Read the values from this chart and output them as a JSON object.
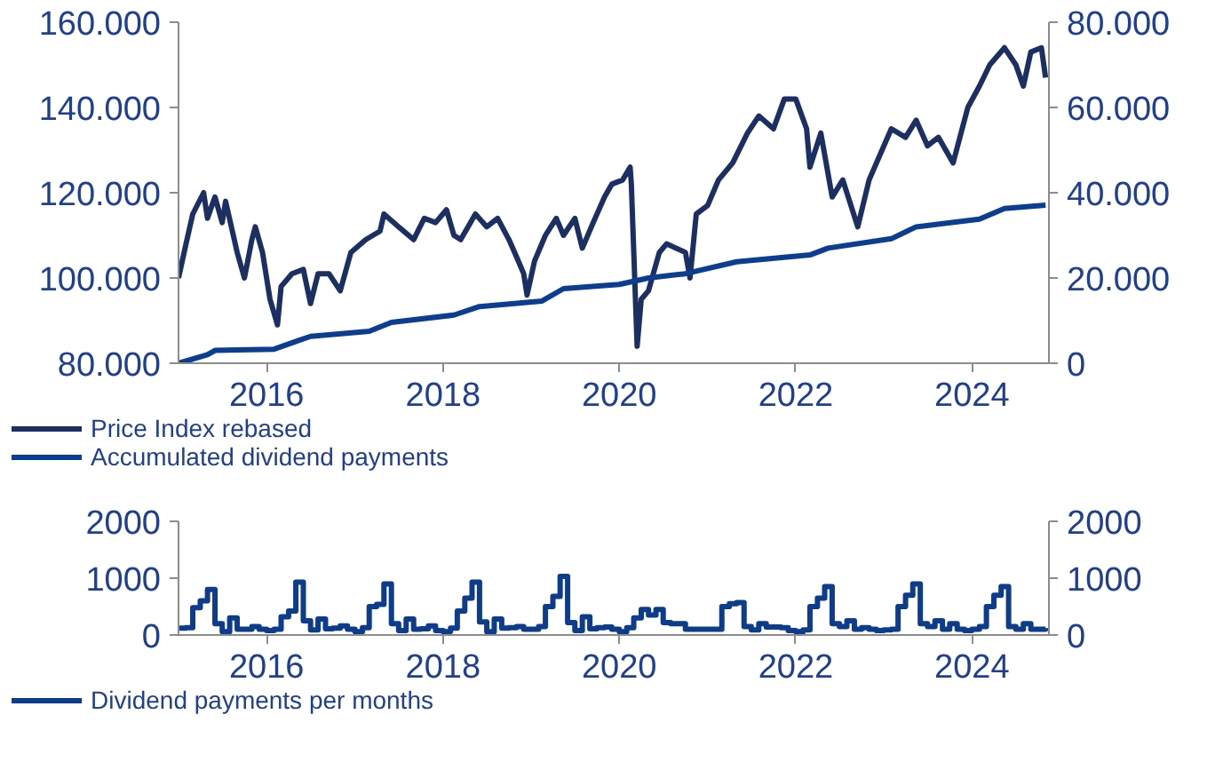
{
  "chart_data": [
    {
      "type": "line",
      "xlim": [
        "2015-01-01",
        "2024-11-15"
      ],
      "xticks": [
        {
          "value": "2016-01-01",
          "label": "2016"
        },
        {
          "value": "2018-01-01",
          "label": "2018"
        },
        {
          "value": "2020-01-01",
          "label": "2020"
        },
        {
          "value": "2022-01-01",
          "label": "2022"
        },
        {
          "value": "2024-01-01",
          "label": "2024"
        }
      ],
      "ylim": [
        80000,
        160000
      ],
      "yticks": [
        {
          "value": 80000,
          "label": "80.000"
        },
        {
          "value": 100000,
          "label": "100.000"
        },
        {
          "value": 120000,
          "label": "120.000"
        },
        {
          "value": 140000,
          "label": "140.000"
        },
        {
          "value": 160000,
          "label": "160.000"
        }
      ],
      "y2lim": [
        0,
        80000
      ],
      "y2ticks": [
        0,
        {
          "value": 20000,
          "label": "20.000"
        },
        {
          "value": 40000,
          "label": "40.000"
        },
        {
          "value": 60000,
          "label": "60.000"
        },
        {
          "value": 80000,
          "label": "80.000"
        }
      ],
      "legend": "bottom",
      "series": [
        {
          "name": "Price Index rebased",
          "color": "#1b2f63",
          "x": [
            "2015-01-01",
            "2015-02-01",
            "2015-03-01",
            "2015-04-15",
            "2015-05-01",
            "2015-06-01",
            "2015-07-01",
            "2015-07-15",
            "2015-09-01",
            "2015-10-01",
            "2015-11-01",
            "2015-11-15",
            "2015-12-15",
            "2016-01-15",
            "2016-02-15",
            "2016-03-01",
            "2016-04-15",
            "2016-06-01",
            "2016-07-01",
            "2016-08-01",
            "2016-09-15",
            "2016-11-01",
            "2016-12-15",
            "2017-02-15",
            "2017-04-15",
            "2017-05-01",
            "2017-07-01",
            "2017-09-01",
            "2017-10-15",
            "2017-12-01",
            "2018-01-15",
            "2018-02-15",
            "2018-03-15",
            "2018-05-15",
            "2018-07-01",
            "2018-08-15",
            "2018-10-01",
            "2018-11-01",
            "2018-12-01",
            "2018-12-15",
            "2019-01-15",
            "2019-03-01",
            "2019-04-15",
            "2019-05-15",
            "2019-07-01",
            "2019-08-01",
            "2019-09-15",
            "2019-11-01",
            "2019-12-01",
            "2020-01-15",
            "2020-02-15",
            "2020-02-20",
            "2020-03-15",
            "2020-04-01",
            "2020-05-01",
            "2020-06-15",
            "2020-07-15",
            "2020-10-01",
            "2020-10-20",
            "2020-11-15",
            "2021-01-01",
            "2021-02-15",
            "2021-04-15",
            "2021-06-15",
            "2021-08-01",
            "2021-10-01",
            "2021-11-15",
            "2022-01-01",
            "2022-02-15",
            "2022-03-01",
            "2022-04-15",
            "2022-06-01",
            "2022-07-15",
            "2022-09-15",
            "2022-11-01",
            "2023-02-01",
            "2023-04-01",
            "2023-05-15",
            "2023-07-01",
            "2023-08-15",
            "2023-10-15",
            "2023-12-15",
            "2024-02-01",
            "2024-03-15",
            "2024-05-15",
            "2024-07-01",
            "2024-08-01",
            "2024-09-01",
            "2024-10-15",
            "2024-11-01"
          ],
          "values": [
            100000,
            108000,
            115000,
            120000,
            114000,
            119000,
            113000,
            118000,
            106000,
            100000,
            109000,
            112000,
            106000,
            95000,
            89000,
            98000,
            101000,
            102000,
            94000,
            101000,
            101000,
            97000,
            106000,
            109000,
            111000,
            115000,
            112000,
            109000,
            114000,
            113000,
            116000,
            110000,
            109000,
            115000,
            112000,
            114000,
            109000,
            105000,
            101000,
            96000,
            104000,
            110000,
            114000,
            110000,
            114000,
            107000,
            113000,
            119000,
            122000,
            123000,
            126000,
            122000,
            84000,
            95000,
            97000,
            106000,
            108000,
            106000,
            100000,
            115000,
            117000,
            123000,
            127000,
            134000,
            138000,
            135000,
            142000,
            142000,
            135000,
            126000,
            134000,
            119000,
            123000,
            112000,
            123000,
            135000,
            133000,
            137000,
            131000,
            133000,
            127000,
            140000,
            145000,
            150000,
            154000,
            150000,
            145000,
            153000,
            154000,
            147000
          ]
        },
        {
          "name": "Accumulated dividend payments",
          "color": "#0b3d91",
          "axis": "y2",
          "x": [
            "2015-01-01",
            "2015-05-01",
            "2015-06-01",
            "2016-02-01",
            "2016-05-15",
            "2016-07-01",
            "2017-03-01",
            "2017-06-01",
            "2018-02-15",
            "2018-06-01",
            "2019-02-15",
            "2019-05-15",
            "2020-01-01",
            "2020-05-01",
            "2020-10-01",
            "2021-05-01",
            "2022-03-01",
            "2022-05-15",
            "2023-02-01",
            "2023-05-15",
            "2024-02-01",
            "2024-05-15",
            "2024-11-01"
          ],
          "values": [
            0,
            2000,
            3000,
            3300,
            5400,
            6300,
            7500,
            9600,
            11300,
            13300,
            14600,
            17500,
            18500,
            20000,
            21000,
            23800,
            25400,
            27000,
            29200,
            32000,
            33800,
            36300,
            37100
          ]
        }
      ]
    },
    {
      "type": "step",
      "xlim": [
        "2015-01-01",
        "2024-11-15"
      ],
      "xticks": [
        {
          "value": "2016-01-01",
          "label": "2016"
        },
        {
          "value": "2018-01-01",
          "label": "2018"
        },
        {
          "value": "2020-01-01",
          "label": "2020"
        },
        {
          "value": "2022-01-01",
          "label": "2022"
        },
        {
          "value": "2024-01-01",
          "label": "2024"
        }
      ],
      "ylim": [
        0,
        2000
      ],
      "yticks": [
        0,
        1000,
        2000
      ],
      "y2lim": [
        0,
        2000
      ],
      "y2ticks": [
        0,
        1000,
        2000
      ],
      "legend": "bottom",
      "series": [
        {
          "name": "Dividend payments per months",
          "color": "#0d3c8c",
          "x": [
            "2015-01",
            "2015-02",
            "2015-03",
            "2015-04",
            "2015-05",
            "2015-06",
            "2015-07",
            "2015-08",
            "2015-09",
            "2015-10",
            "2015-11",
            "2015-12",
            "2016-01",
            "2016-02",
            "2016-03",
            "2016-04",
            "2016-05",
            "2016-06",
            "2016-07",
            "2016-08",
            "2016-09",
            "2016-10",
            "2016-11",
            "2016-12",
            "2017-01",
            "2017-02",
            "2017-03",
            "2017-04",
            "2017-05",
            "2017-06",
            "2017-07",
            "2017-08",
            "2017-09",
            "2017-10",
            "2017-11",
            "2017-12",
            "2018-01",
            "2018-02",
            "2018-03",
            "2018-04",
            "2018-05",
            "2018-06",
            "2018-07",
            "2018-08",
            "2018-09",
            "2018-10",
            "2018-11",
            "2018-12",
            "2019-01",
            "2019-02",
            "2019-03",
            "2019-04",
            "2019-05",
            "2019-06",
            "2019-07",
            "2019-08",
            "2019-09",
            "2019-10",
            "2019-11",
            "2019-12",
            "2020-01",
            "2020-02",
            "2020-03",
            "2020-04",
            "2020-05",
            "2020-06",
            "2020-07",
            "2020-08",
            "2020-09",
            "2020-10",
            "2020-11",
            "2020-12",
            "2021-01",
            "2021-02",
            "2021-03",
            "2021-04",
            "2021-05",
            "2021-06",
            "2021-07",
            "2021-08",
            "2021-09",
            "2021-10",
            "2021-11",
            "2021-12",
            "2022-01",
            "2022-02",
            "2022-03",
            "2022-04",
            "2022-05",
            "2022-06",
            "2022-07",
            "2022-08",
            "2022-09",
            "2022-10",
            "2022-11",
            "2022-12",
            "2023-01",
            "2023-02",
            "2023-03",
            "2023-04",
            "2023-05",
            "2023-06",
            "2023-07",
            "2023-08",
            "2023-09",
            "2023-10",
            "2023-11",
            "2023-12",
            "2024-01",
            "2024-02",
            "2024-03",
            "2024-04",
            "2024-05",
            "2024-06",
            "2024-07",
            "2024-08",
            "2024-09",
            "2024-10",
            "2024-11"
          ],
          "values": [
            120,
            130,
            480,
            600,
            800,
            200,
            60,
            300,
            100,
            100,
            150,
            100,
            80,
            100,
            320,
            420,
            930,
            250,
            90,
            280,
            110,
            120,
            160,
            100,
            60,
            130,
            500,
            540,
            900,
            200,
            80,
            280,
            100,
            110,
            160,
            80,
            60,
            120,
            420,
            650,
            930,
            230,
            60,
            280,
            120,
            130,
            150,
            100,
            100,
            150,
            500,
            680,
            1030,
            220,
            80,
            320,
            110,
            130,
            140,
            100,
            60,
            130,
            300,
            450,
            350,
            450,
            220,
            200,
            200,
            100,
            100,
            100,
            100,
            100,
            500,
            550,
            570,
            150,
            90,
            200,
            140,
            140,
            130,
            80,
            60,
            90,
            500,
            650,
            850,
            200,
            150,
            250,
            100,
            130,
            100,
            80,
            90,
            100,
            500,
            700,
            900,
            200,
            150,
            250,
            100,
            200,
            100,
            80,
            100,
            150,
            500,
            700,
            850,
            150,
            100,
            200,
            100,
            100,
            120
          ]
        }
      ]
    }
  ]
}
